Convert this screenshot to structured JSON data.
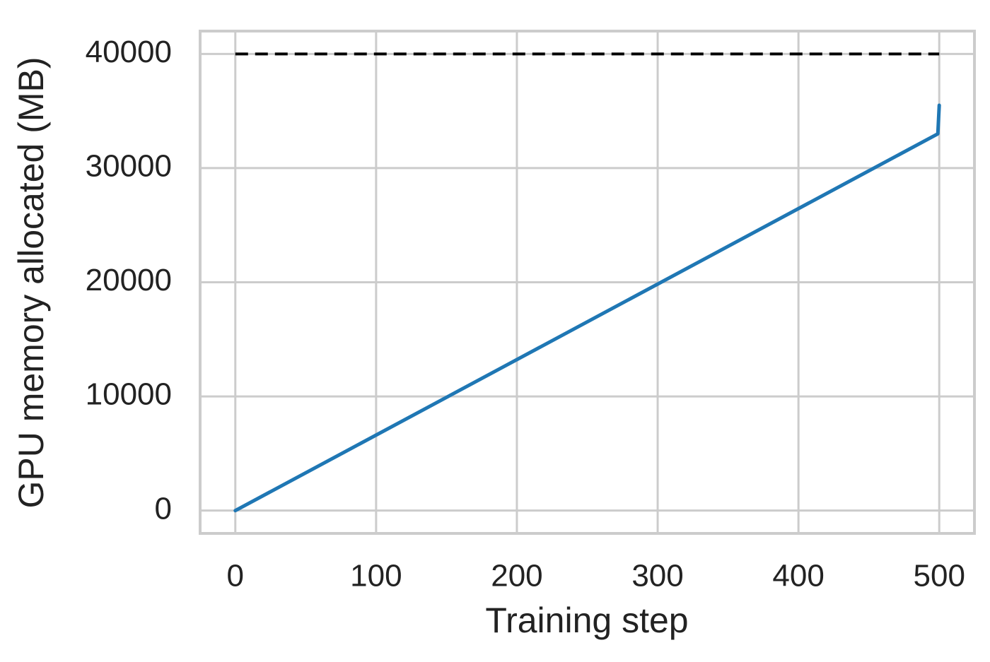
{
  "chart_data": {
    "type": "line",
    "xlabel": "Training step",
    "ylabel": "GPU memory allocated (MB)",
    "x": [
      0,
      499,
      500
    ],
    "series": [
      {
        "color": "#1f77b4",
        "values": [
          0,
          33000,
          35500
        ]
      }
    ],
    "reference_line": {
      "y": 40000,
      "x": [
        0,
        500
      ],
      "color": "#000000",
      "dashed": true
    },
    "xlim": [
      -25,
      525
    ],
    "xticks": [
      0,
      100,
      200,
      300,
      400,
      500
    ],
    "ylim": [
      -2000,
      42000
    ],
    "yticks": [
      0,
      10000,
      20000,
      30000,
      40000
    ],
    "grid": true
  }
}
